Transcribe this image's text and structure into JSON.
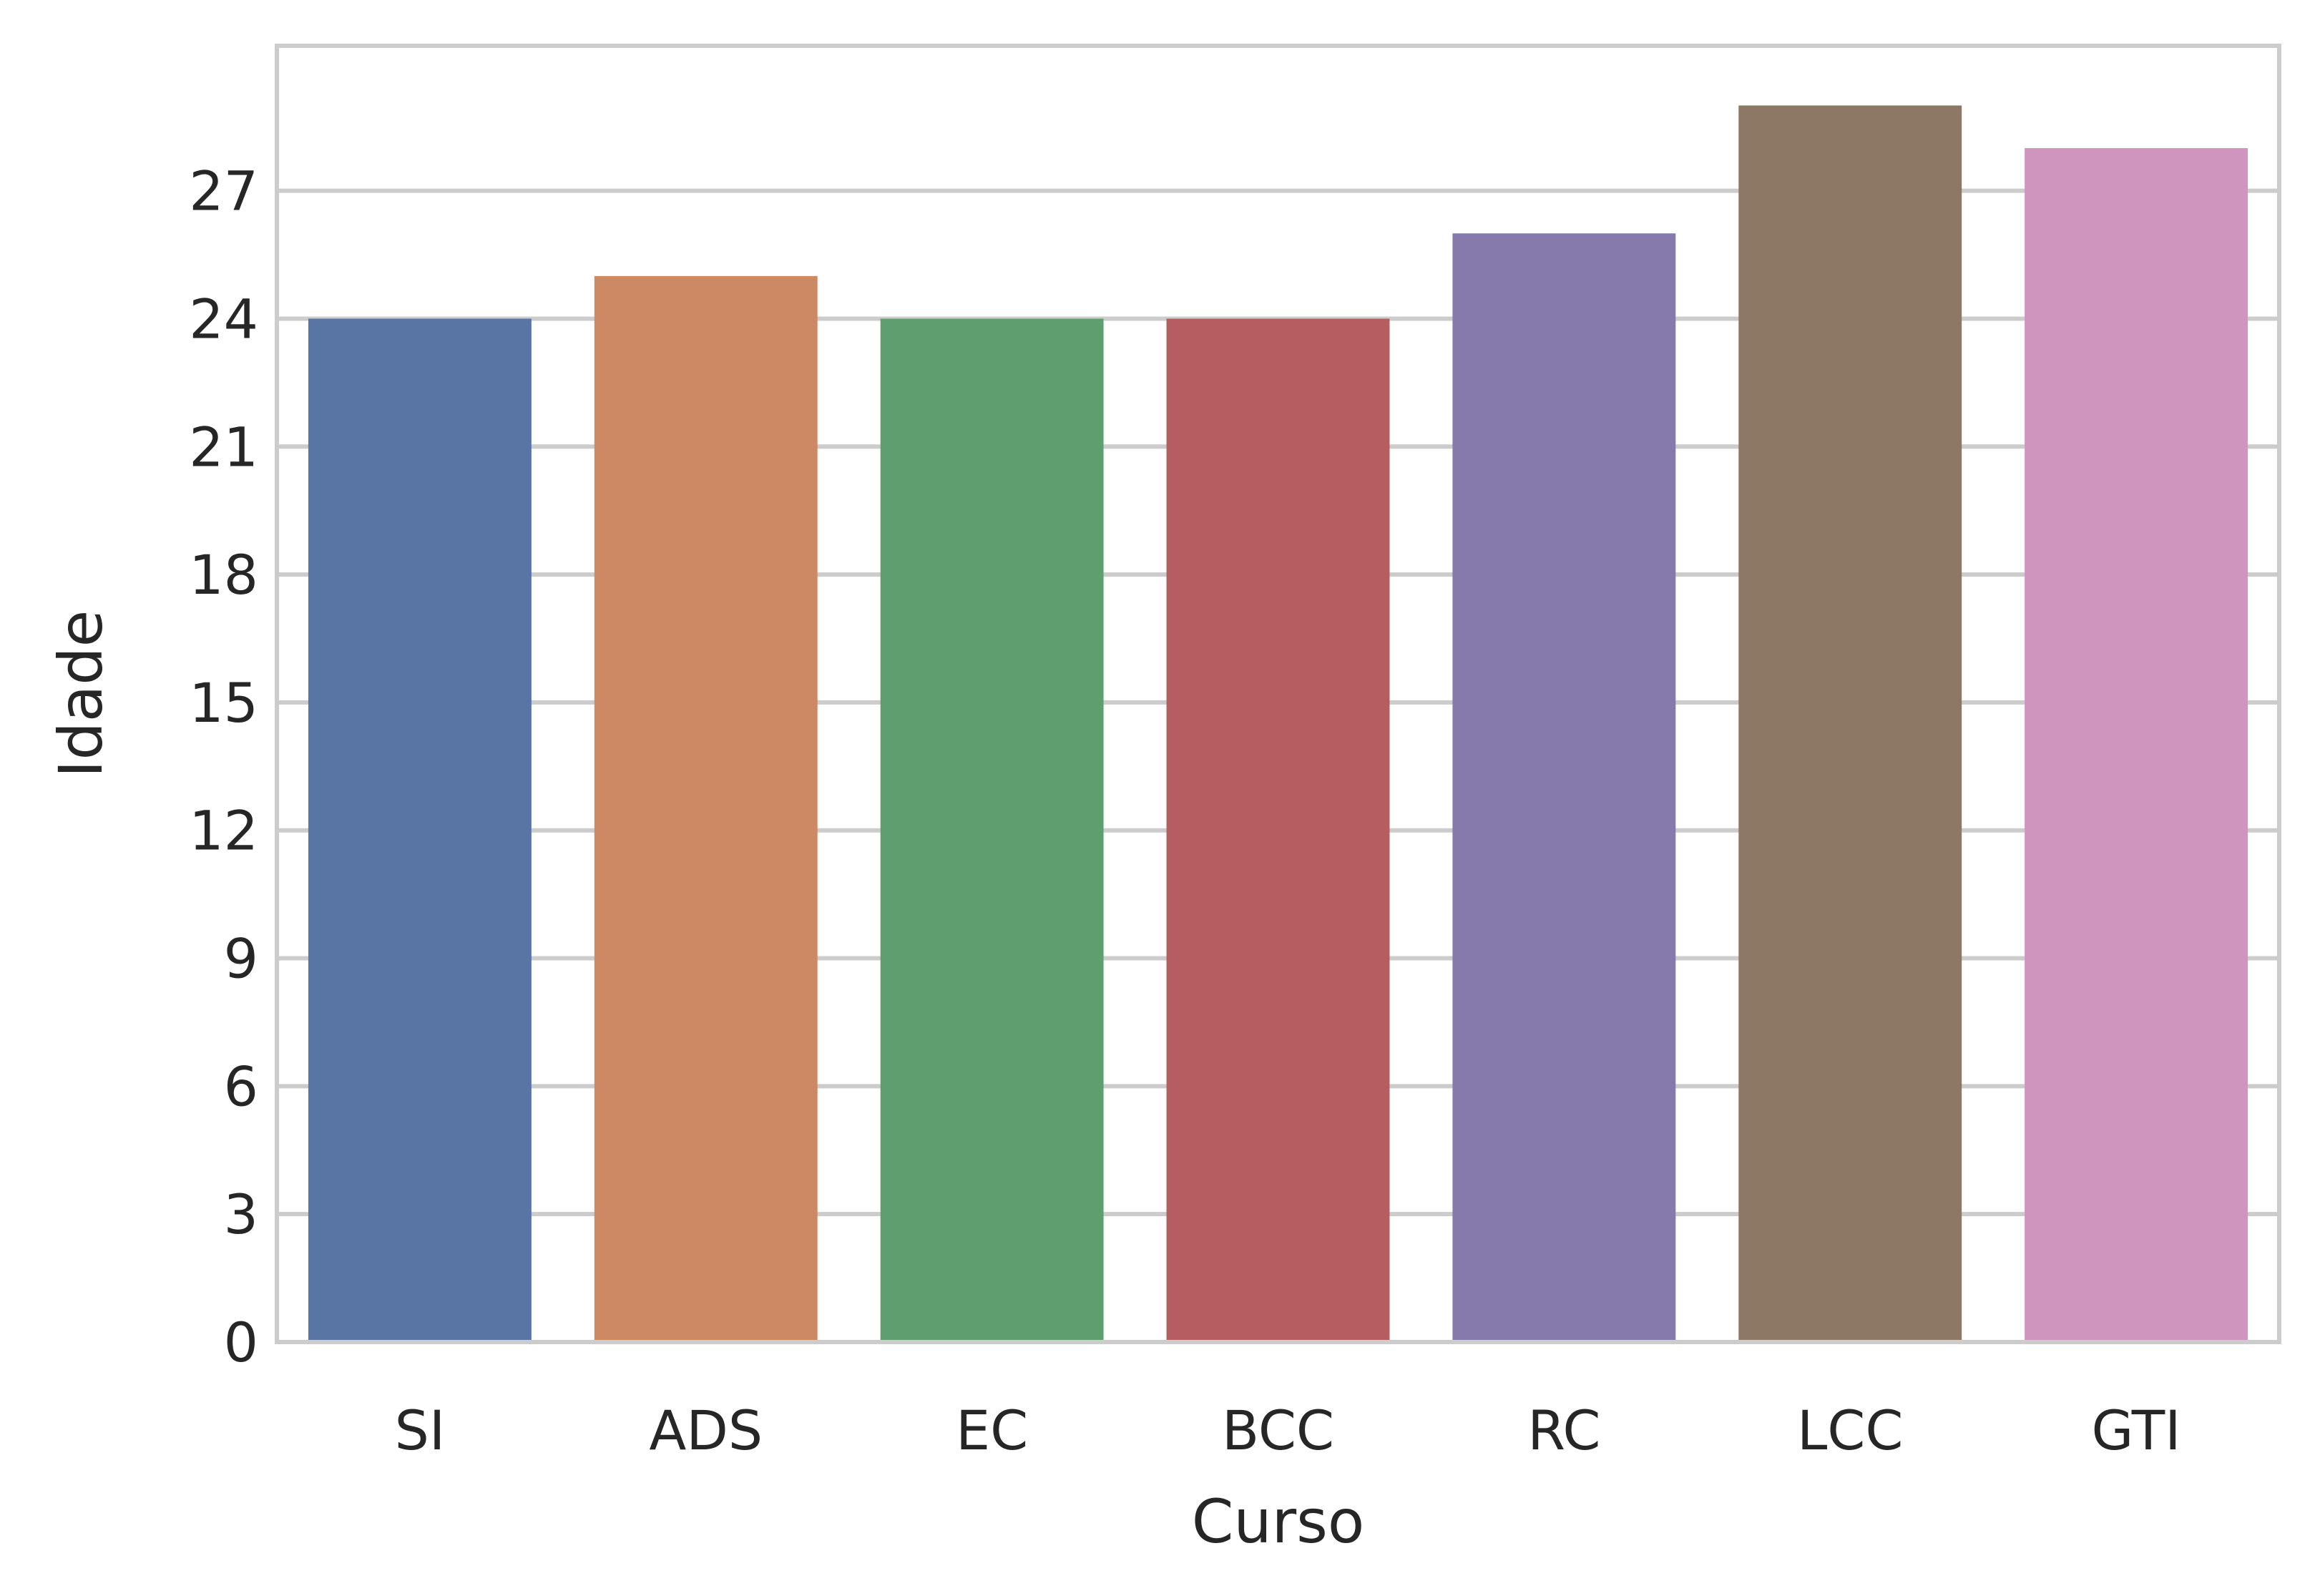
{
  "chart_data": {
    "type": "bar",
    "categories": [
      "SI",
      "ADS",
      "EC",
      "BCC",
      "RC",
      "LCC",
      "GTI"
    ],
    "values": [
      24,
      25,
      24,
      24,
      26,
      29,
      28
    ],
    "colors": [
      "#5875a4",
      "#cc8963",
      "#5f9e6e",
      "#b55d60",
      "#857aab",
      "#8d7866",
      "#d095bf"
    ],
    "xlabel": "Curso",
    "ylabel": "Idade",
    "ylim": [
      0,
      30.4
    ],
    "yticks": [
      0,
      3,
      6,
      9,
      12,
      15,
      18,
      21,
      24,
      27
    ],
    "grid": true,
    "grid_color": "#cccccc",
    "spine_color": "#cccccc"
  }
}
